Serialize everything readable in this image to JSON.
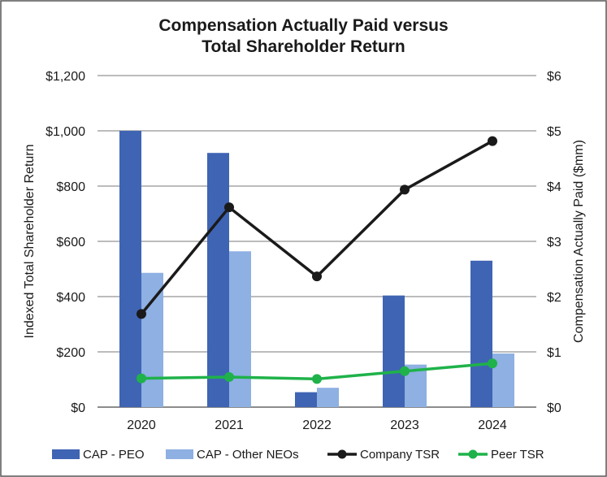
{
  "chart_data": {
    "type": "bar",
    "title_lines": [
      "Compensation Actually Paid versus",
      "Total Shareholder Return"
    ],
    "categories": [
      "2020",
      "2021",
      "2022",
      "2023",
      "2024"
    ],
    "left_axis": {
      "label": "Indexed Total Shareholder Return",
      "ylim": [
        0,
        1200
      ],
      "ticks": [
        0,
        200,
        400,
        600,
        800,
        1000,
        1200
      ],
      "tick_labels": [
        "$0",
        "$200",
        "$400",
        "$600",
        "$800",
        "$1,000",
        "$1,200"
      ]
    },
    "right_axis": {
      "label": "Compensation Actually Paid ($mm)",
      "ylim": [
        0,
        6
      ],
      "ticks": [
        0,
        1,
        2,
        3,
        4,
        5,
        6
      ],
      "tick_labels": [
        "$0",
        "$1",
        "$2",
        "$3",
        "$4",
        "$5",
        "$6"
      ]
    },
    "series": [
      {
        "name": "CAP - PEO",
        "type": "bar",
        "axis": "right",
        "color": "#3f64b4",
        "values": [
          5.0,
          4.6,
          0.27,
          2.02,
          2.65
        ]
      },
      {
        "name": "CAP - Other NEOs",
        "type": "bar",
        "axis": "right",
        "color": "#8eb0e2",
        "values": [
          2.43,
          2.82,
          0.35,
          0.77,
          0.97
        ]
      },
      {
        "name": "Company TSR",
        "type": "line",
        "axis": "left",
        "color": "#1a1a1a",
        "values": [
          337,
          723,
          473,
          787,
          963
        ]
      },
      {
        "name": "Peer TSR",
        "type": "line",
        "axis": "left",
        "color": "#1fb24a",
        "values": [
          104,
          109,
          102,
          130,
          158
        ]
      }
    ],
    "grid": true,
    "legend": "bottom"
  }
}
